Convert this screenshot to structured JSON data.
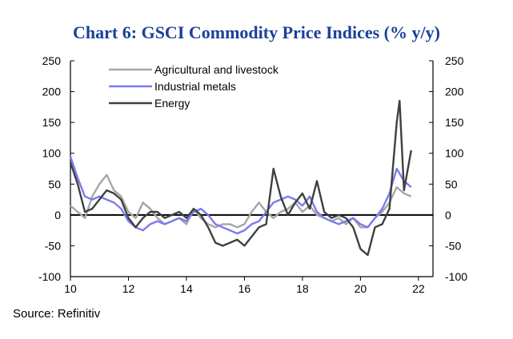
{
  "chart_data": {
    "type": "line",
    "title": "Chart 6: GSCI Commodity Price Indices (% y/y)",
    "xlabel": "",
    "ylabel": "",
    "xlim": [
      2010,
      2022.5
    ],
    "ylim": [
      -100,
      250
    ],
    "x_ticks": [
      2010,
      2012,
      2014,
      2016,
      2018,
      2020,
      2022
    ],
    "x_tick_labels": [
      "10",
      "12",
      "14",
      "16",
      "18",
      "20",
      "22"
    ],
    "y_ticks": [
      -100,
      -50,
      0,
      50,
      100,
      150,
      200,
      250
    ],
    "y_tick_labels": [
      "-100",
      "-50",
      "0",
      "50",
      "100",
      "150",
      "200",
      "250"
    ],
    "secondary_y_ticks": [
      -100,
      -50,
      0,
      50,
      100,
      150,
      200,
      250
    ],
    "secondary_y_tick_labels": [
      "-100",
      "-50",
      "0",
      "50",
      "100",
      "150",
      "200",
      "250"
    ],
    "grid": false,
    "legend_position": "top-left",
    "series": [
      {
        "name": "Agricultural and livestock",
        "color": "#a6a6a6",
        "x": [
          2010.0,
          2010.25,
          2010.5,
          2010.75,
          2011.0,
          2011.25,
          2011.5,
          2011.75,
          2012.0,
          2012.25,
          2012.5,
          2012.75,
          2013.0,
          2013.25,
          2013.5,
          2013.75,
          2014.0,
          2014.25,
          2014.5,
          2014.75,
          2015.0,
          2015.25,
          2015.5,
          2015.75,
          2016.0,
          2016.25,
          2016.5,
          2016.75,
          2017.0,
          2017.25,
          2017.5,
          2017.75,
          2018.0,
          2018.25,
          2018.5,
          2018.75,
          2019.0,
          2019.25,
          2019.5,
          2019.75,
          2020.0,
          2020.25,
          2020.5,
          2020.75,
          2021.0,
          2021.25,
          2021.5,
          2021.75
        ],
        "values": [
          15,
          5,
          -5,
          30,
          50,
          65,
          40,
          30,
          5,
          -5,
          20,
          10,
          -5,
          -15,
          -10,
          -5,
          -15,
          10,
          -5,
          -15,
          -20,
          -15,
          -15,
          -20,
          -15,
          5,
          20,
          5,
          -5,
          5,
          10,
          20,
          5,
          15,
          0,
          -5,
          -10,
          -5,
          -15,
          -5,
          -20,
          -20,
          -5,
          5,
          20,
          45,
          35,
          30
        ]
      },
      {
        "name": "Industrial metals",
        "color": "#7b7bf0",
        "x": [
          2010.0,
          2010.25,
          2010.5,
          2010.75,
          2011.0,
          2011.25,
          2011.5,
          2011.75,
          2012.0,
          2012.25,
          2012.5,
          2012.75,
          2013.0,
          2013.25,
          2013.5,
          2013.75,
          2014.0,
          2014.25,
          2014.5,
          2014.75,
          2015.0,
          2015.25,
          2015.5,
          2015.75,
          2016.0,
          2016.25,
          2016.5,
          2016.75,
          2017.0,
          2017.25,
          2017.5,
          2017.75,
          2018.0,
          2018.25,
          2018.5,
          2018.75,
          2019.0,
          2019.25,
          2019.5,
          2019.75,
          2020.0,
          2020.25,
          2020.5,
          2020.75,
          2021.0,
          2021.25,
          2021.5,
          2021.75
        ],
        "values": [
          95,
          60,
          30,
          25,
          30,
          25,
          20,
          10,
          -10,
          -20,
          -25,
          -15,
          -10,
          -15,
          -10,
          -5,
          -10,
          5,
          10,
          0,
          -15,
          -20,
          -25,
          -30,
          -25,
          -15,
          -10,
          5,
          20,
          25,
          30,
          25,
          15,
          30,
          5,
          -5,
          -10,
          -15,
          -10,
          -5,
          -15,
          -20,
          -5,
          10,
          35,
          75,
          55,
          45
        ]
      },
      {
        "name": "Energy",
        "color": "#404040",
        "x": [
          2010.0,
          2010.25,
          2010.5,
          2010.75,
          2011.0,
          2011.25,
          2011.5,
          2011.75,
          2012.0,
          2012.25,
          2012.5,
          2012.75,
          2013.0,
          2013.25,
          2013.5,
          2013.75,
          2014.0,
          2014.25,
          2014.5,
          2014.75,
          2015.0,
          2015.25,
          2015.5,
          2015.75,
          2016.0,
          2016.25,
          2016.5,
          2016.75,
          2017.0,
          2017.25,
          2017.5,
          2017.75,
          2018.0,
          2018.25,
          2018.5,
          2018.75,
          2019.0,
          2019.25,
          2019.5,
          2019.75,
          2020.0,
          2020.25,
          2020.5,
          2020.75,
          2021.0,
          2021.25,
          2021.35,
          2021.5,
          2021.75
        ],
        "values": [
          85,
          50,
          5,
          10,
          25,
          40,
          35,
          25,
          -5,
          -20,
          -5,
          5,
          5,
          -5,
          0,
          5,
          -5,
          10,
          0,
          -20,
          -45,
          -50,
          -45,
          -40,
          -50,
          -35,
          -20,
          -15,
          75,
          30,
          0,
          20,
          35,
          10,
          55,
          5,
          -5,
          0,
          -5,
          -20,
          -55,
          -65,
          -20,
          -15,
          10,
          150,
          185,
          40,
          105
        ]
      }
    ]
  },
  "source": "Source: Refinitiv"
}
